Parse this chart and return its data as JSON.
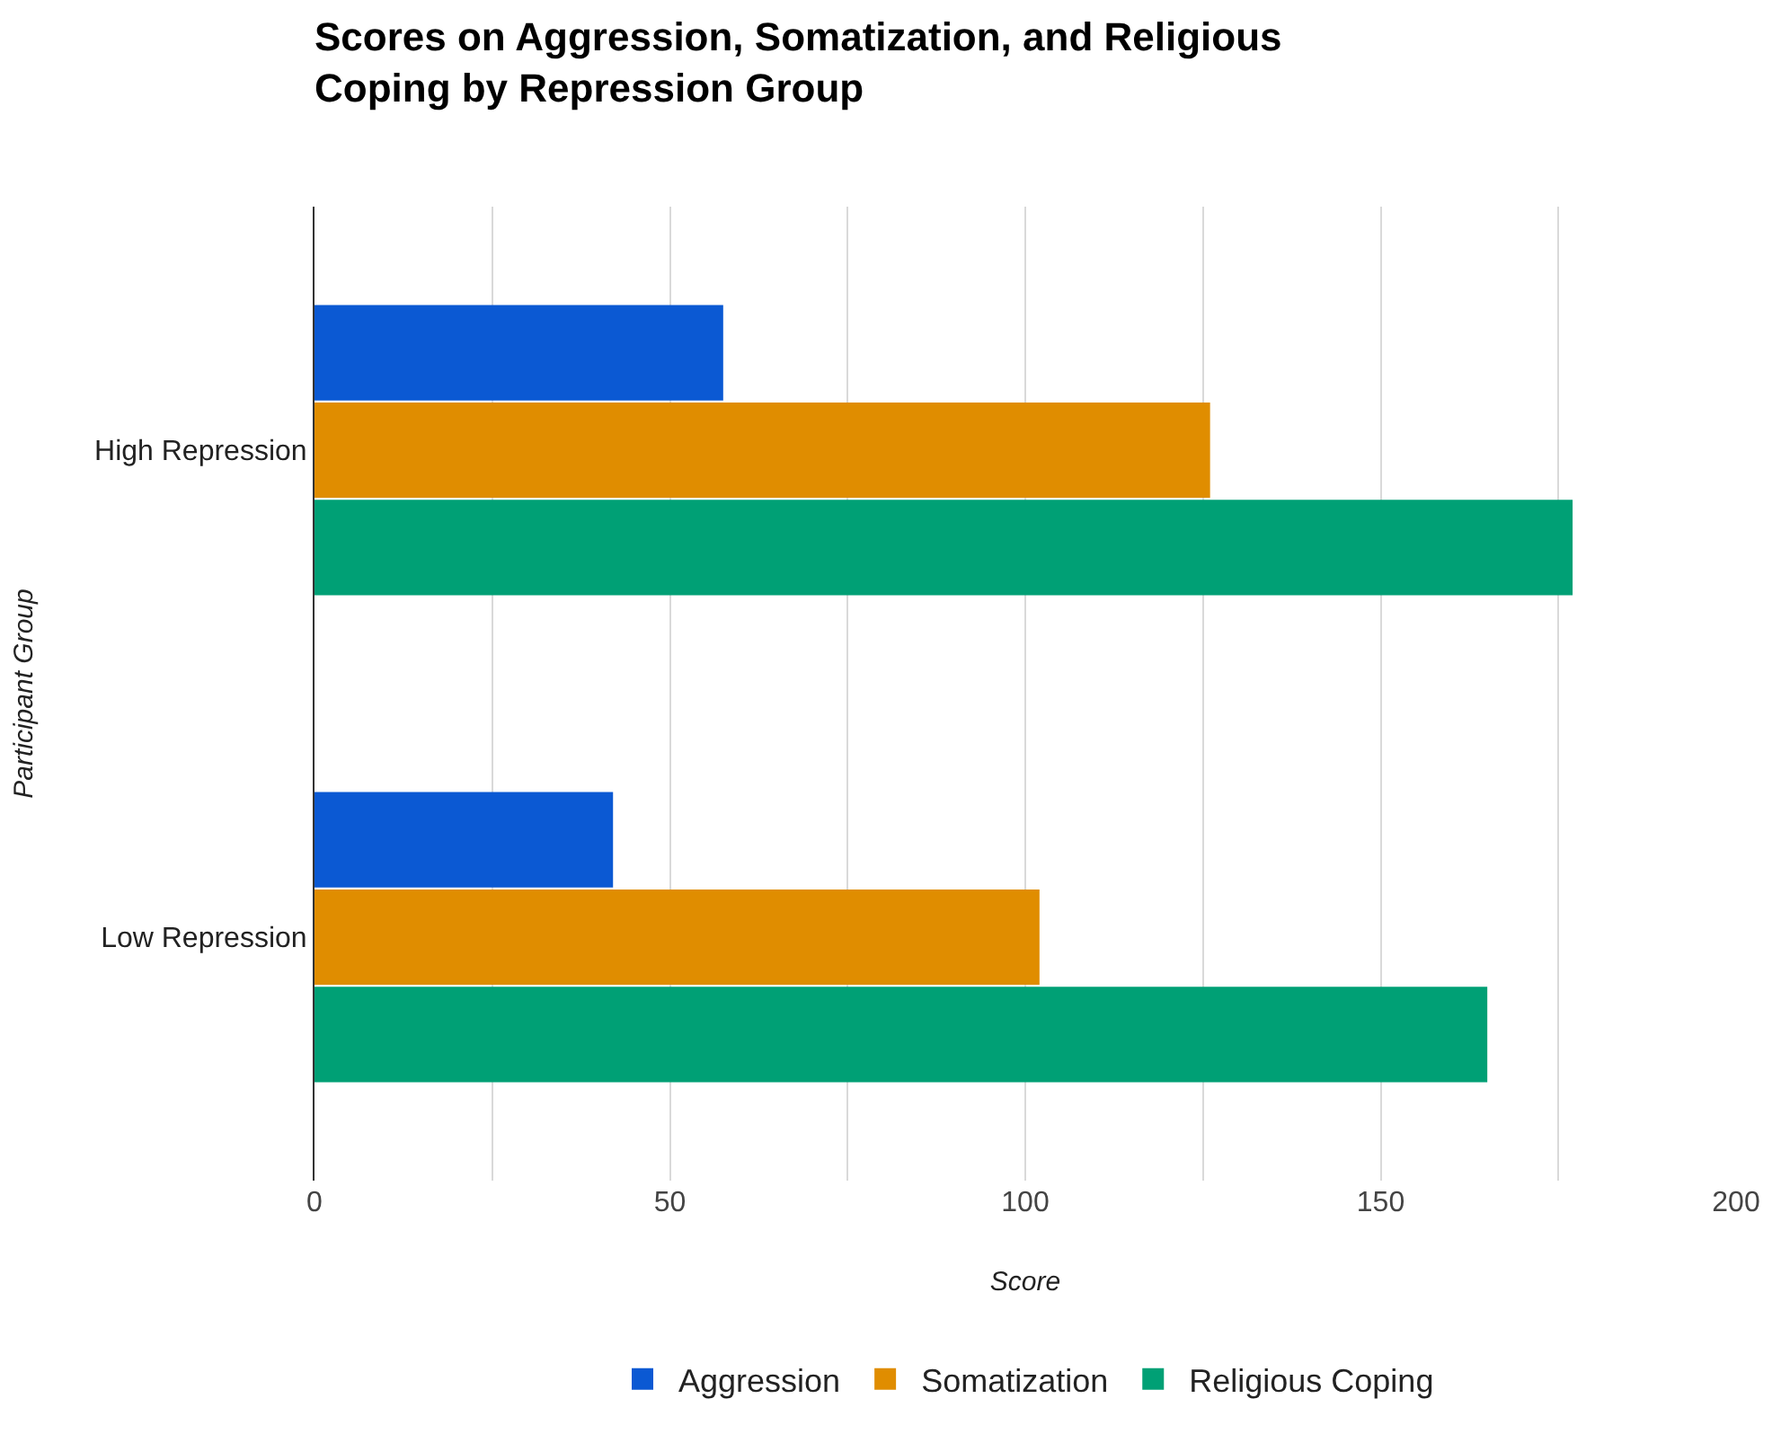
{
  "chart_data": {
    "type": "bar",
    "orientation": "horizontal",
    "title": "Scores on Aggression, Somatization, and Religious Coping by Repression Group",
    "xlabel": "Score",
    "ylabel": "Participant Group",
    "categories": [
      "High Repression",
      "Low Repression"
    ],
    "series": [
      {
        "name": "Aggression",
        "color": "#0b59d3",
        "values": [
          57.5,
          42
        ]
      },
      {
        "name": "Somatization",
        "color": "#e08d00",
        "values": [
          126,
          102
        ]
      },
      {
        "name": "Religious Coping",
        "color": "#00a075",
        "values": [
          177,
          165
        ]
      }
    ],
    "xlim": [
      0,
      200
    ],
    "xticks": [
      0,
      {
        "value": 25,
        "label": null
      },
      50,
      {
        "value": 75,
        "label": null
      },
      100,
      {
        "value": 125,
        "label": null
      },
      150,
      {
        "value": 175,
        "label": null
      },
      200
    ],
    "grid": "x",
    "legend": "bottom"
  }
}
